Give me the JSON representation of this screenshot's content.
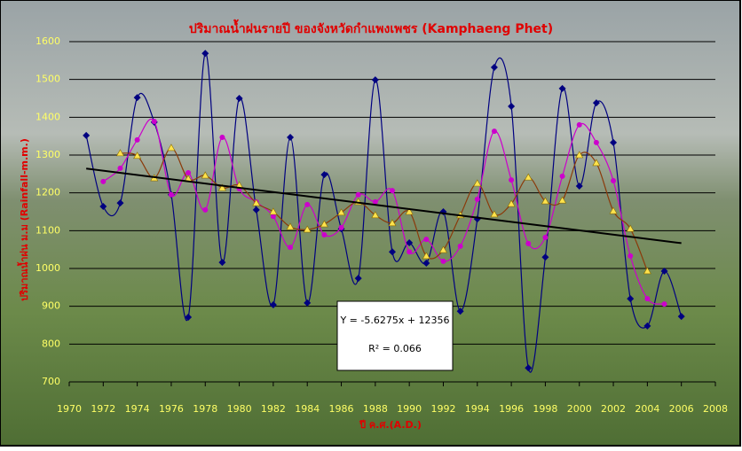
{
  "chart_data": {
    "type": "line",
    "title": "ปริมาณน้ำฝนรายปี ของจังหวัดกำแพงเพชร (Kamphaeng Phet)",
    "y_label": "ปริมาณน้ำฝน ม.ม (Rainfall-m.m.)",
    "x_label": "ปี ค.ศ.(A.D.)",
    "x": [
      1971,
      1972,
      1973,
      1974,
      1975,
      1976,
      1977,
      1978,
      1979,
      1980,
      1981,
      1982,
      1983,
      1984,
      1985,
      1986,
      1987,
      1988,
      1989,
      1990,
      1991,
      1992,
      1993,
      1994,
      1995,
      1996,
      1997,
      1998,
      1999,
      2000,
      2001,
      2002,
      2003,
      2004,
      2005,
      2006
    ],
    "series": [
      {
        "color": "#000080",
        "marker": "diamond",
        "values": [
          1352,
          1164,
          1173,
          1452,
          1387,
          1195,
          871,
          1569,
          1016,
          1450,
          1155,
          904,
          1347,
          909,
          1248,
          1105,
          974,
          1499,
          1044,
          1068,
          1014,
          1150,
          887,
          1131,
          1532,
          1429,
          737,
          1030,
          1476,
          1218,
          1438,
          1333,
          920,
          848,
          993,
          873
        ]
      },
      {
        "color": "#cc00cc",
        "marker": "circle",
        "values": [
          null,
          1230,
          1265,
          1340,
          1389,
          1195,
          1253,
          1155,
          1347,
          1211,
          1176,
          1138,
          1056,
          1169,
          1089,
          1108,
          1195,
          1176,
          1206,
          1044,
          1077,
          1019,
          1059,
          1183,
          1363,
          1234,
          1066,
          1082,
          1244,
          1380,
          1333,
          1232,
          1033,
          920,
          906,
          null
        ]
      },
      {
        "color": "#8b3a0a",
        "marker": "triangle",
        "marker_color": "#ffe34d",
        "values": [
          null,
          null,
          1305,
          1298,
          1239,
          1319,
          1237,
          1246,
          1213,
          1220,
          1173,
          1150,
          1110,
          1103,
          1117,
          1148,
          1176,
          1141,
          1120,
          1150,
          1033,
          1049,
          1141,
          1225,
          1143,
          1171,
          1241,
          1178,
          1180,
          1300,
          1279,
          1152,
          1105,
          993,
          null,
          null
        ]
      }
    ],
    "trendline": {
      "color": "#000000",
      "x": [
        1971,
        2006
      ],
      "values": [
        1264.2,
        1067.0
      ],
      "equation": "Y = -5.6275x + 12356",
      "r2_label": "R² = 0.066"
    },
    "xlim": [
      1970,
      2008
    ],
    "xticks": [
      1970,
      1972,
      1974,
      1976,
      1978,
      1980,
      1982,
      1984,
      1986,
      1988,
      1990,
      1992,
      1994,
      1996,
      1998,
      2000,
      2002,
      2004,
      2006,
      2008
    ],
    "ylim": [
      700,
      1600
    ],
    "yticks": [
      700,
      800,
      900,
      1000,
      1100,
      1200,
      1300,
      1400,
      1500,
      1600
    ],
    "grid": true
  }
}
